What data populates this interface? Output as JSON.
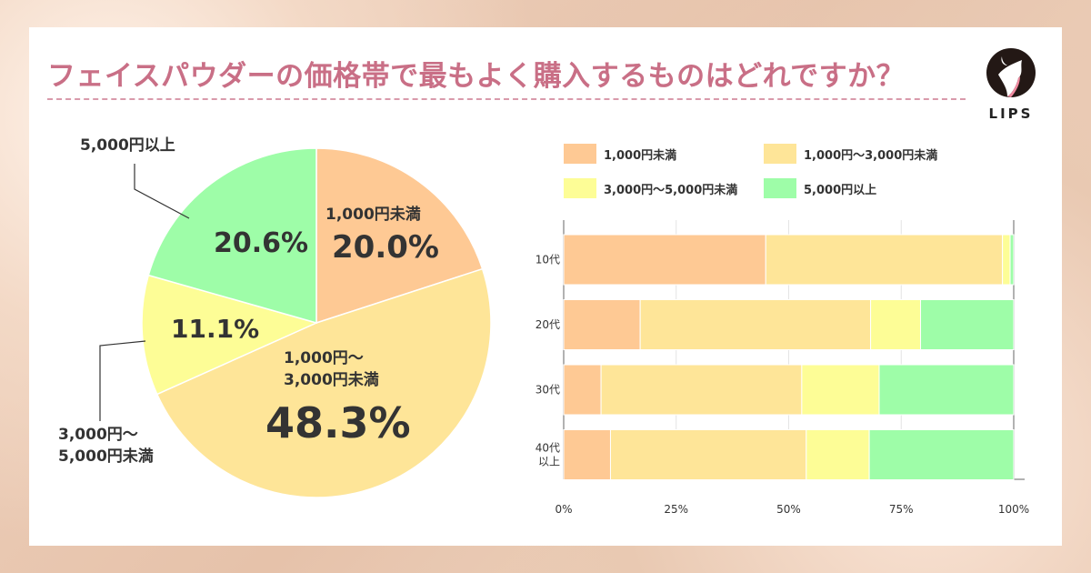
{
  "title": "フェイスパウダーの価格帯で最もよく購入するものはどれですか？",
  "logo_text": "LIPS",
  "colors": {
    "lt1000": "#FEC994",
    "1000to3000": "#FEE598",
    "3000to5000": "#FDFD96",
    "over5000": "#9EFDA8",
    "title": "#C96F86"
  },
  "chart_data": [
    {
      "type": "pie",
      "categories": [
        "1,000円未満",
        "1,000円〜3,000円未満",
        "3,000円〜5,000円未満",
        "5,000円以上"
      ],
      "values": [
        20.0,
        48.3,
        11.1,
        20.6
      ],
      "labels": [
        {
          "name": "1,000円未満",
          "value": "20.0%"
        },
        {
          "name_line1": "1,000円〜",
          "name_line2": "3,000円未満",
          "value": "48.3%"
        },
        {
          "name_line1": "3,000円〜",
          "name_line2": "5,000円未満",
          "value": "11.1%"
        },
        {
          "name": "5,000円以上",
          "value": "20.6%"
        }
      ]
    },
    {
      "type": "bar",
      "orientation": "horizontal",
      "stacked": true,
      "categories": [
        "10代",
        "20代",
        "30代",
        "40代以上"
      ],
      "category_lines": [
        [
          "10代"
        ],
        [
          "20代"
        ],
        [
          "30代"
        ],
        [
          "40代",
          "以上"
        ]
      ],
      "series": [
        {
          "name": "1,000円未満",
          "values": [
            44.9,
            17.0,
            8.3,
            10.4
          ]
        },
        {
          "name": "1,000円〜3,000円未満",
          "values": [
            52.6,
            51.2,
            44.6,
            43.5
          ]
        },
        {
          "name": "3,000円〜5,000円未満",
          "values": [
            1.7,
            11.1,
            17.2,
            14.0
          ]
        },
        {
          "name": "5,000円以上",
          "values": [
            0.8,
            20.7,
            29.9,
            32.1
          ]
        }
      ],
      "xlim": [
        0,
        100
      ],
      "xticks": [
        "0%",
        "25%",
        "50%",
        "75%",
        "100%"
      ],
      "grid": true,
      "legend": "top"
    }
  ]
}
